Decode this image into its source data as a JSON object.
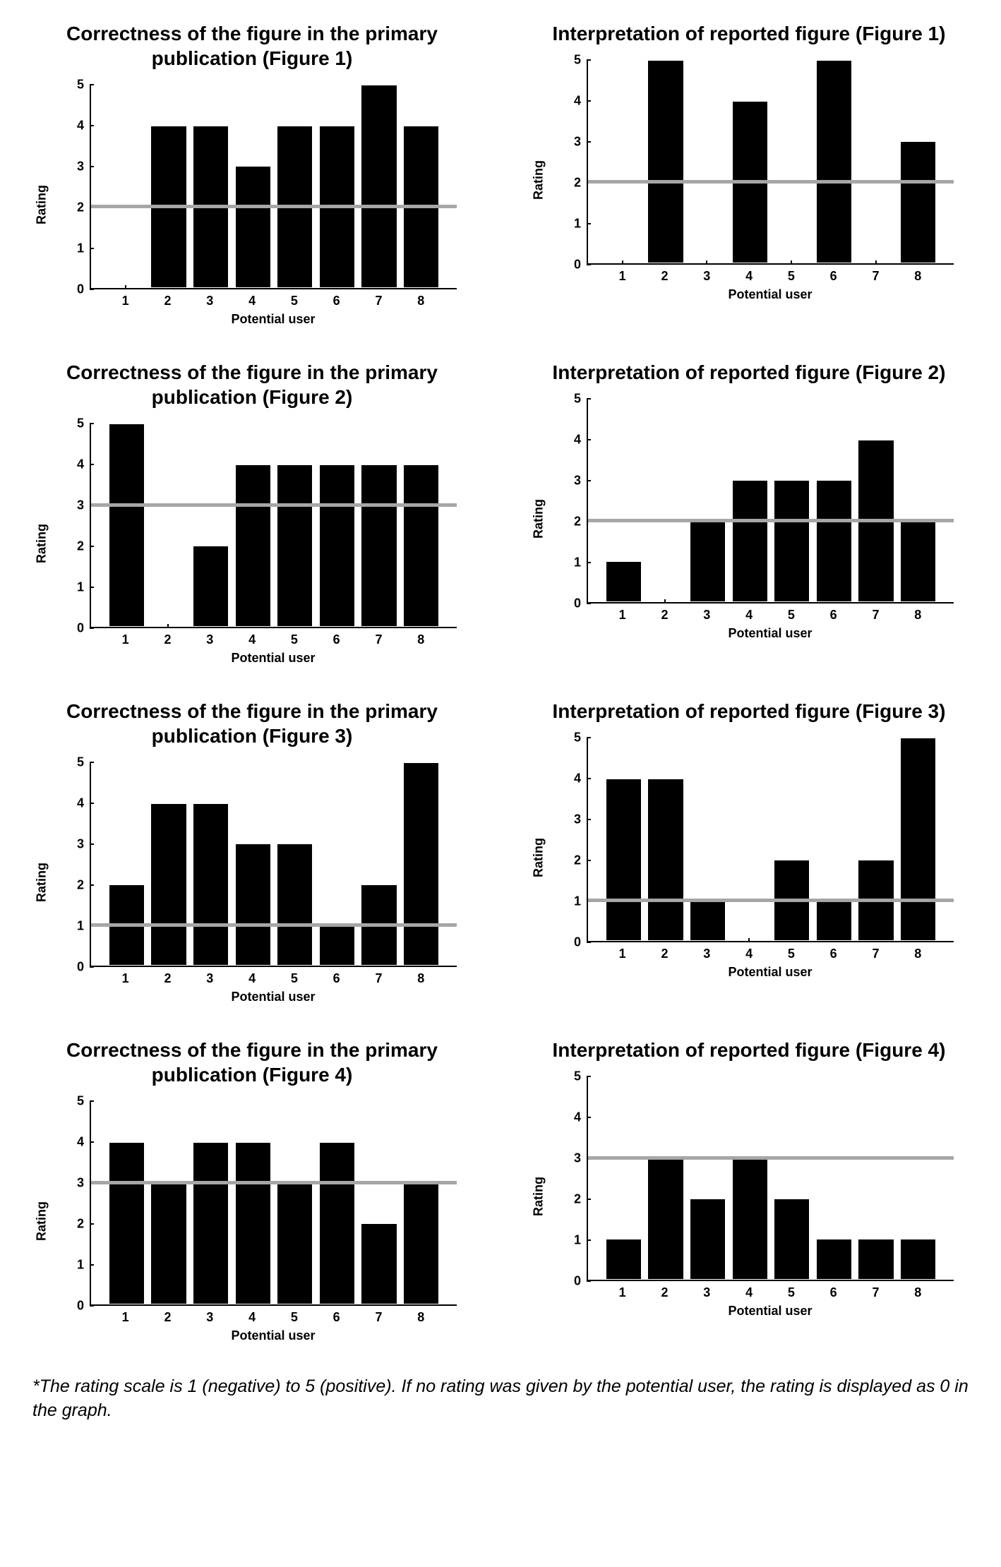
{
  "colors": {
    "bar": "#000000",
    "axis": "#000000",
    "refline": "#a6a6a6",
    "background": "#ffffff"
  },
  "axis": {
    "ylabel": "Rating",
    "xlabel": "Potential user",
    "ymin": 0,
    "ymax": 5,
    "ytick_step": 1,
    "yticks": [
      0,
      1,
      2,
      3,
      4,
      5
    ],
    "categories": [
      1,
      2,
      3,
      4,
      5,
      6,
      7,
      8
    ],
    "bar_width_ratio": 0.86,
    "plot_margin_ratio": 0.04
  },
  "charts": [
    {
      "key": "c1",
      "title": "Correctness of the figure in the primary publication (Figure 1)",
      "values": [
        0,
        4,
        4,
        3,
        4,
        4,
        5,
        4
      ],
      "refline": 2
    },
    {
      "key": "i1",
      "title": "Interpretation of reported figure (Figure 1)",
      "values": [
        0,
        5,
        0,
        4,
        0,
        5,
        0,
        3
      ],
      "refline": 2
    },
    {
      "key": "c2",
      "title": "Correctness of the figure in the primary publication  (Figure 2)",
      "values": [
        5,
        0,
        2,
        4,
        4,
        4,
        4,
        4
      ],
      "refline": 3
    },
    {
      "key": "i2",
      "title": "Interpretation of reported figure  (Figure 2)",
      "values": [
        1,
        0,
        2,
        3,
        3,
        3,
        4,
        2
      ],
      "refline": 2
    },
    {
      "key": "c3",
      "title": "Correctness of the figure in the primary publication  (Figure 3)",
      "values": [
        2,
        4,
        4,
        3,
        3,
        1,
        2,
        5
      ],
      "refline": 1
    },
    {
      "key": "i3",
      "title": "Interpretation of reported figure  (Figure 3)",
      "values": [
        4,
        4,
        1,
        0,
        2,
        1,
        2,
        5
      ],
      "refline": 1
    },
    {
      "key": "c4",
      "title": "Correctness of the figure in the primary publication  (Figure 4)",
      "values": [
        4,
        3,
        4,
        4,
        3,
        4,
        2,
        3
      ],
      "refline": 3
    },
    {
      "key": "i4",
      "title": "Interpretation of reported figure  (Figure 4)",
      "values": [
        1,
        3,
        2,
        3,
        2,
        1,
        1,
        1
      ],
      "refline": 3
    }
  ],
  "footnote": "*The rating scale is 1 (negative) to 5 (positive). If no rating was given by the potential user, the rating is displayed as 0 in the graph."
}
